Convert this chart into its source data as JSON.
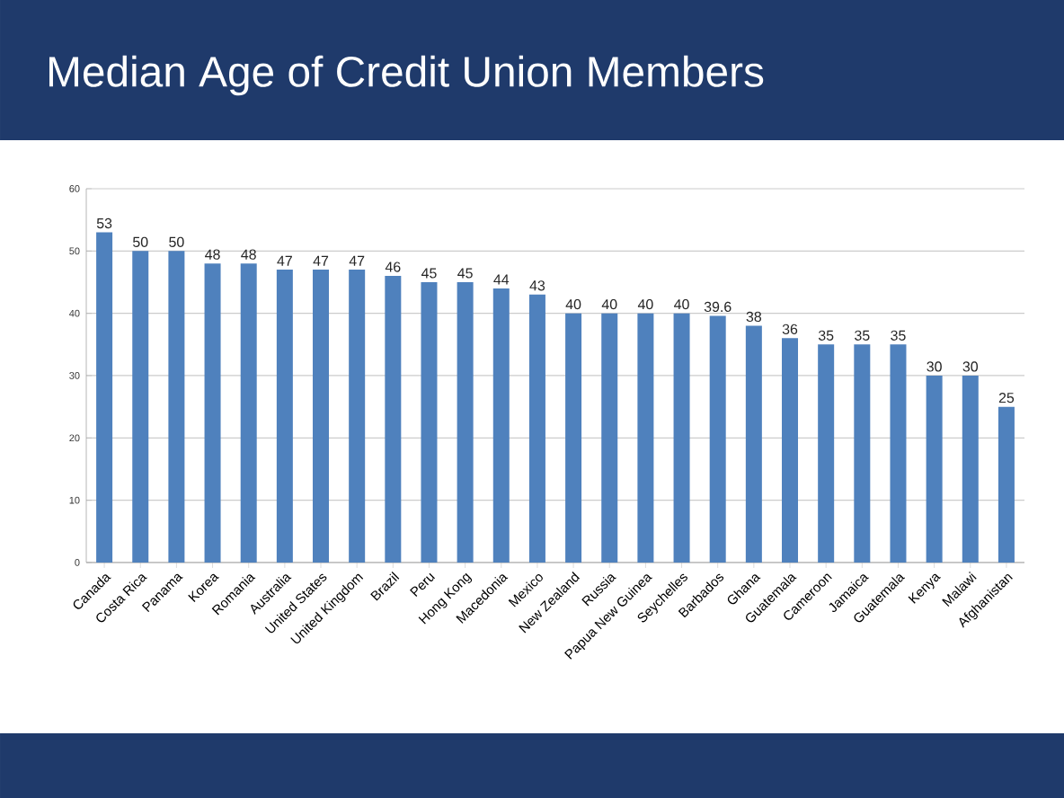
{
  "chart_data": {
    "type": "bar",
    "title": "Median Age of Credit Union Members",
    "categories": [
      "Canada",
      "Costa Rica",
      "Panama",
      "Korea",
      "Romania",
      "Australia",
      "United States",
      "United Kingdom",
      "Brazil",
      "Peru",
      "Hong Kong",
      "Macedonia",
      "Mexico",
      "New Zealand",
      "Russia",
      "Papua New Guinea",
      "Seychelles",
      "Barbados",
      "Ghana",
      "Guatemala",
      "Cameroon",
      "Jamaica",
      "Guatemala",
      "Kenya",
      "Malawi",
      "Afghanistan"
    ],
    "values": [
      53,
      50,
      50,
      48,
      48,
      47,
      47,
      47,
      46,
      45,
      45,
      44,
      43,
      40,
      40,
      40,
      40,
      39.6,
      38,
      36,
      35,
      35,
      35,
      30,
      30,
      25
    ],
    "color": "#4f81bd",
    "ylim": [
      0,
      60
    ],
    "yticks": [
      0,
      10,
      20,
      30,
      40,
      50,
      60
    ],
    "grid": "y",
    "data_labels": true
  }
}
